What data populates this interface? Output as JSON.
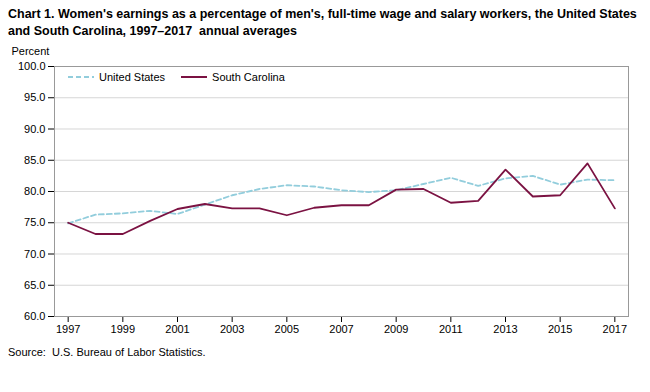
{
  "chart_data": {
    "type": "line",
    "title": "Chart 1. Women's earnings as a percentage of men's, full-time wage and salary workers, the United States and South Carolina, 1997–2017  annual averages",
    "ylabel": "Percent",
    "source": "Source:  U.S. Bureau of Labor Statistics.",
    "x": [
      1997,
      1998,
      1999,
      2000,
      2001,
      2002,
      2003,
      2004,
      2005,
      2006,
      2007,
      2008,
      2009,
      2010,
      2011,
      2012,
      2013,
      2014,
      2015,
      2016,
      2017
    ],
    "series": [
      {
        "name": "United States",
        "color": "#92CDDC",
        "line_style": "dashed",
        "values": [
          74.9,
          76.3,
          76.5,
          76.9,
          76.4,
          77.9,
          79.4,
          80.4,
          81.0,
          80.8,
          80.2,
          79.9,
          80.2,
          81.2,
          82.2,
          80.9,
          82.1,
          82.5,
          81.1,
          81.9,
          81.8
        ]
      },
      {
        "name": "South Carolina",
        "color": "#7B1242",
        "line_style": "solid",
        "values": [
          75.0,
          73.2,
          73.2,
          75.3,
          77.2,
          78.0,
          77.3,
          77.3,
          76.2,
          77.4,
          77.8,
          77.8,
          80.3,
          80.4,
          78.2,
          78.5,
          83.5,
          79.2,
          79.4,
          84.5,
          77.3
        ]
      }
    ],
    "xlim": [
      1996.5,
      2017.5
    ],
    "xticks": [
      1997,
      1999,
      2001,
      2003,
      2005,
      2007,
      2009,
      2011,
      2013,
      2015,
      2017
    ],
    "ylim": [
      60,
      100
    ],
    "yticks": [
      {
        "value": 60,
        "label": "60.0"
      },
      {
        "value": 65,
        "label": "65.0"
      },
      {
        "value": 70,
        "label": "70.0"
      },
      {
        "value": 75,
        "label": "75.0"
      },
      {
        "value": 80,
        "label": "80.0"
      },
      {
        "value": 85,
        "label": "85.0"
      },
      {
        "value": 90,
        "label": "90.0"
      },
      {
        "value": 95,
        "label": "95.0"
      },
      {
        "value": 100,
        "label": "100.0"
      }
    ],
    "grid": true,
    "legend": "upper left"
  }
}
